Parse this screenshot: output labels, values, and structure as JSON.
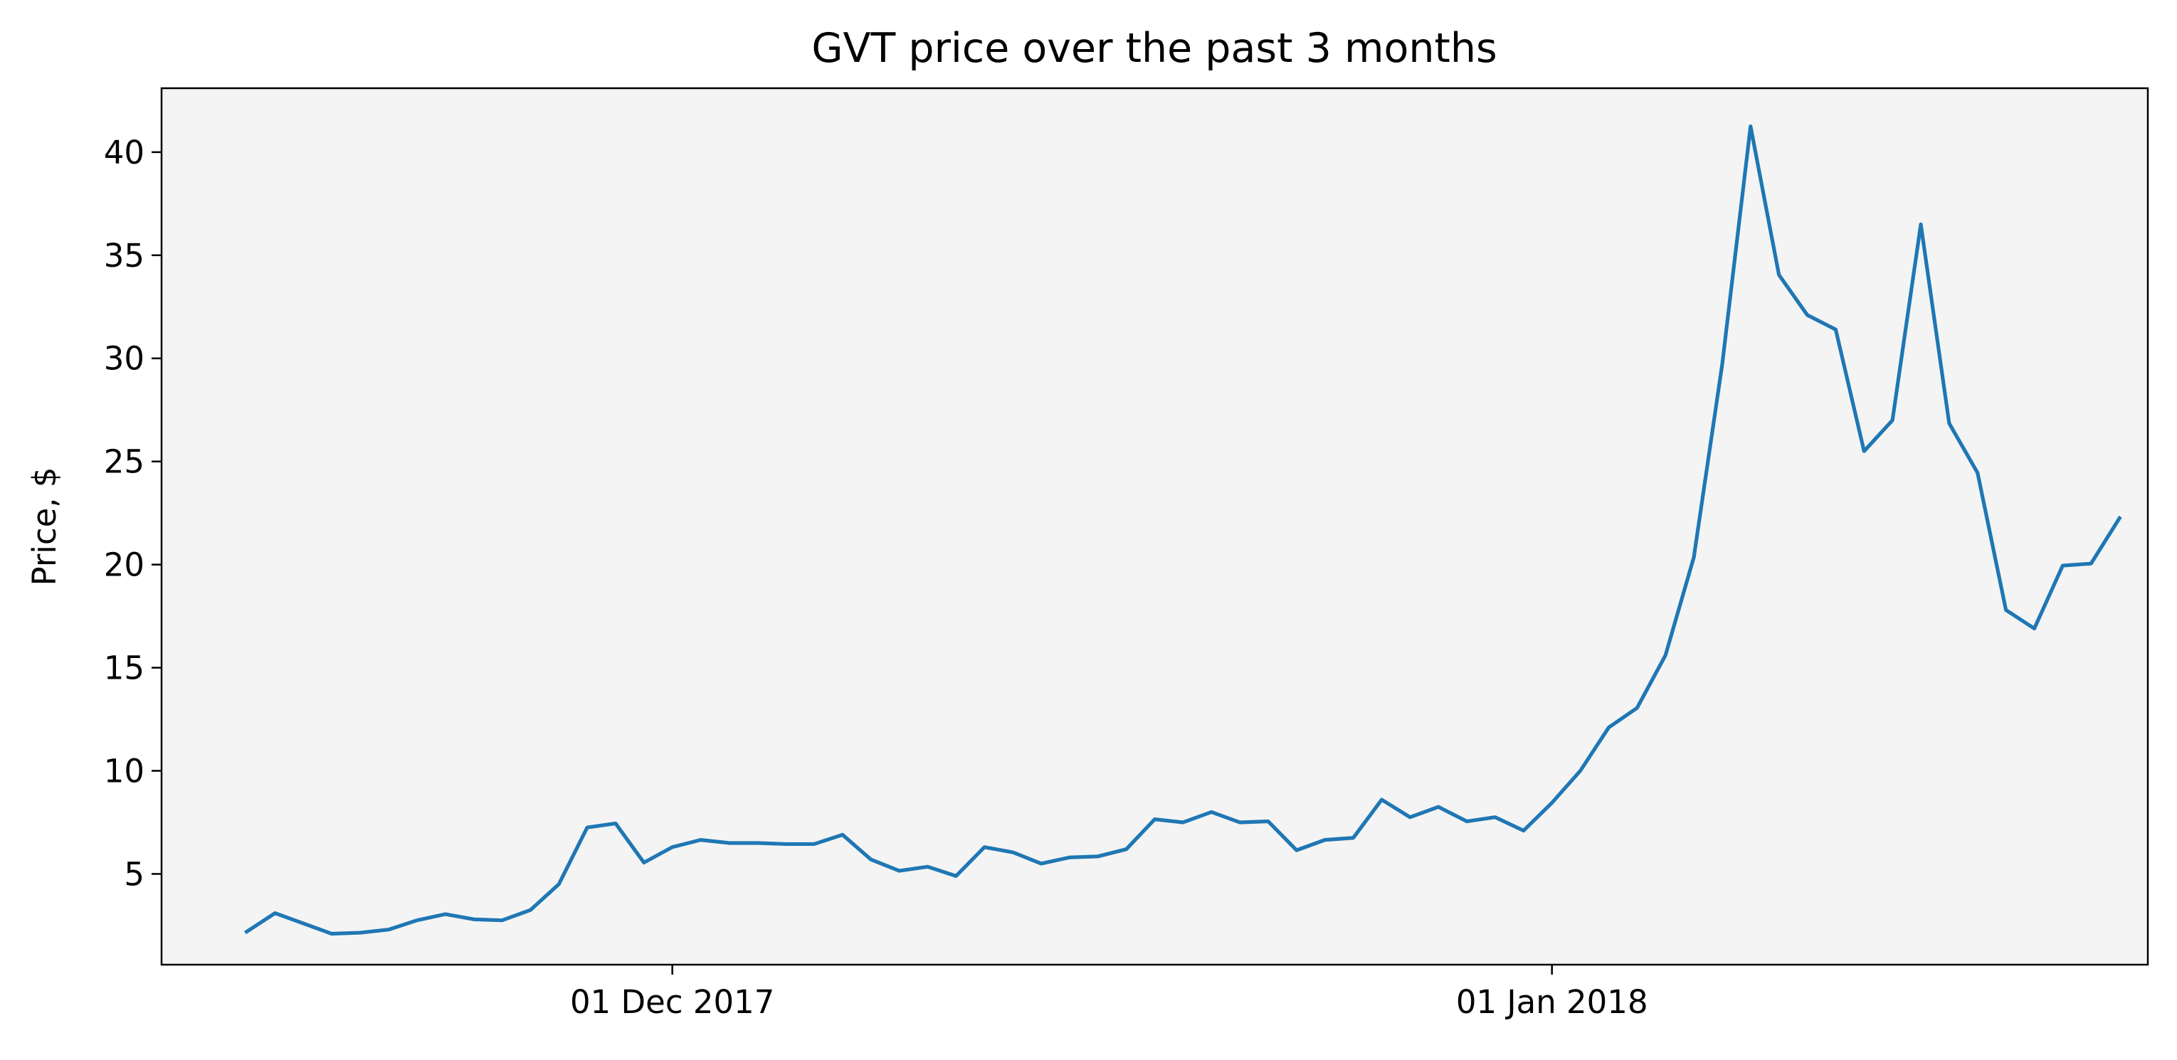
{
  "chart_data": {
    "type": "line",
    "title": "GVT price over the past 3 months",
    "xlabel": "",
    "ylabel": "Price, $",
    "x_tick_labels": [
      {
        "date": "2017-12-01",
        "label": "01 Dec 2017"
      },
      {
        "date": "2018-01-01",
        "label": "01 Jan 2018"
      }
    ],
    "y_ticks": [
      5,
      10,
      15,
      20,
      25,
      30,
      35,
      40
    ],
    "xlim": [
      "2017-11-13",
      "2018-01-22"
    ],
    "ylim": [
      0.6,
      43.1
    ],
    "grid": false,
    "colors": {
      "line": "#1f77b4",
      "plot_background": "#f4f4f4",
      "axes": "#000000"
    },
    "series": [
      {
        "name": "",
        "x": [
          "2017-11-16",
          "2017-11-17",
          "2017-11-18",
          "2017-11-19",
          "2017-11-20",
          "2017-11-21",
          "2017-11-22",
          "2017-11-23",
          "2017-11-24",
          "2017-11-25",
          "2017-11-26",
          "2017-11-27",
          "2017-11-28",
          "2017-11-29",
          "2017-11-30",
          "2017-12-01",
          "2017-12-02",
          "2017-12-03",
          "2017-12-04",
          "2017-12-05",
          "2017-12-06",
          "2017-12-07",
          "2017-12-08",
          "2017-12-09",
          "2017-12-10",
          "2017-12-11",
          "2017-12-12",
          "2017-12-13",
          "2017-12-14",
          "2017-12-15",
          "2017-12-16",
          "2017-12-17",
          "2017-12-18",
          "2017-12-19",
          "2017-12-20",
          "2017-12-21",
          "2017-12-22",
          "2017-12-23",
          "2017-12-24",
          "2017-12-25",
          "2017-12-26",
          "2017-12-27",
          "2017-12-28",
          "2017-12-29",
          "2017-12-30",
          "2017-12-31",
          "2018-01-01",
          "2018-01-02",
          "2018-01-03",
          "2018-01-04",
          "2018-01-05",
          "2018-01-06",
          "2018-01-07",
          "2018-01-08",
          "2018-01-09",
          "2018-01-10",
          "2018-01-11",
          "2018-01-12",
          "2018-01-13",
          "2018-01-14",
          "2018-01-15",
          "2018-01-16",
          "2018-01-17",
          "2018-01-18",
          "2018-01-19",
          "2018-01-20",
          "2018-01-21"
        ],
        "values": [
          2.2,
          3.1,
          2.6,
          2.1,
          2.15,
          2.3,
          2.75,
          3.05,
          2.8,
          2.75,
          3.25,
          4.5,
          7.25,
          7.45,
          5.55,
          6.3,
          6.65,
          6.5,
          6.5,
          6.45,
          6.45,
          6.9,
          5.7,
          5.15,
          5.35,
          4.9,
          6.3,
          6.05,
          5.5,
          5.8,
          5.85,
          6.2,
          7.65,
          7.5,
          8.0,
          7.5,
          7.55,
          6.15,
          6.65,
          6.75,
          8.6,
          7.75,
          8.25,
          7.55,
          7.75,
          7.1,
          8.45,
          10.0,
          12.1,
          13.05,
          15.6,
          20.35,
          29.7,
          41.25,
          34.05,
          32.1,
          31.4,
          25.5,
          27.0,
          36.5,
          26.85,
          24.45,
          17.8,
          16.9,
          19.95,
          20.05,
          22.25
        ]
      }
    ]
  }
}
